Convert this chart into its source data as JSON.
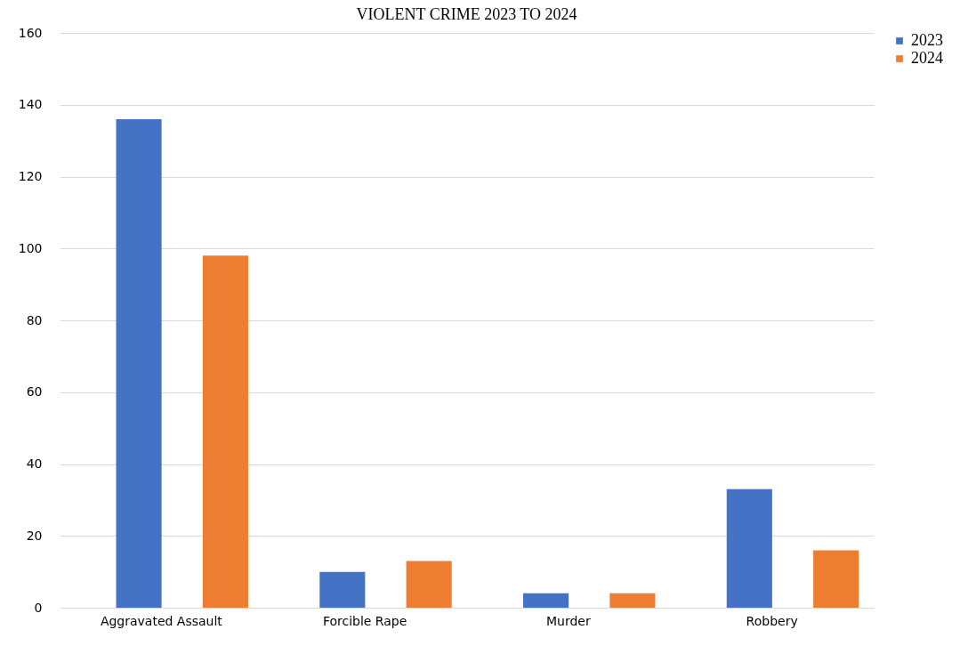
{
  "chart_data": {
    "type": "bar",
    "title": "VIOLENT CRIME 2023 TO 2024",
    "categories": [
      "Aggravated Assault",
      "Forcible Rape",
      "Murder",
      "Robbery"
    ],
    "series": [
      {
        "name": "2023",
        "color": "#4472c4",
        "values": [
          136,
          10,
          4,
          33
        ]
      },
      {
        "name": "2024",
        "color": "#ed7d31",
        "values": [
          98,
          13,
          4,
          16
        ]
      }
    ],
    "ylim": [
      0,
      160
    ],
    "yticks": [
      0,
      20,
      40,
      60,
      80,
      100,
      120,
      140,
      160
    ],
    "grid": "y",
    "legend": "right"
  }
}
